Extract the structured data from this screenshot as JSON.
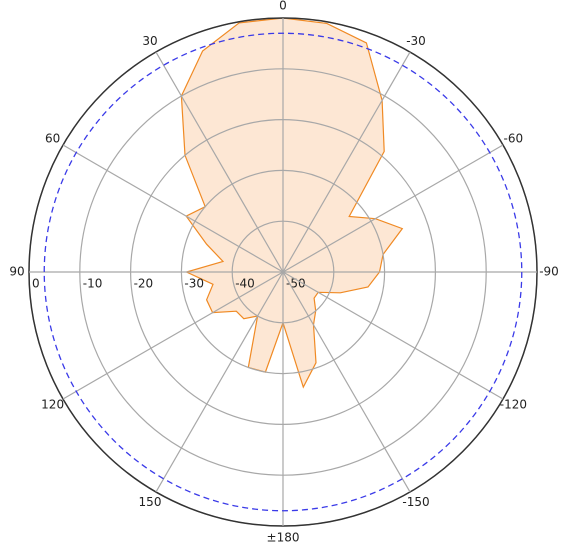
{
  "chart_data": {
    "type": "polar",
    "theta": [
      -170,
      -160,
      -150,
      -140,
      -130,
      -120,
      -110,
      -100,
      -90,
      -80,
      -70,
      -60,
      -50,
      -40,
      -30,
      -20,
      -10,
      0,
      10,
      20,
      30,
      40,
      50,
      60,
      70,
      80,
      90,
      100,
      110,
      120,
      130,
      140,
      150,
      160,
      170,
      180
    ],
    "values": [
      -27,
      -31,
      -38,
      -40,
      -42,
      -42,
      -38,
      -33,
      -31,
      -30,
      -25,
      -29,
      -33,
      -19,
      -11,
      -2,
      -0.3,
      0,
      -0.2,
      -3.7,
      -10,
      -20,
      -30,
      -28,
      -34,
      -38,
      -31,
      -36,
      -34,
      -34,
      -38,
      -38,
      -40,
      -30,
      -30,
      -40
    ],
    "color": "#f08a24",
    "fill": "#fde3cc",
    "rlim": [
      -50,
      0
    ],
    "rticks": [
      0,
      -10,
      -20,
      -30,
      -40,
      -50
    ],
    "thetaticks": [
      0,
      30,
      60,
      90,
      120,
      150,
      {
        "value": 180,
        "label": "±180"
      },
      -150,
      -120,
      -90,
      -60,
      -30
    ],
    "reference_level": -3,
    "reference_color": "#3a3ae8",
    "grid": true
  }
}
